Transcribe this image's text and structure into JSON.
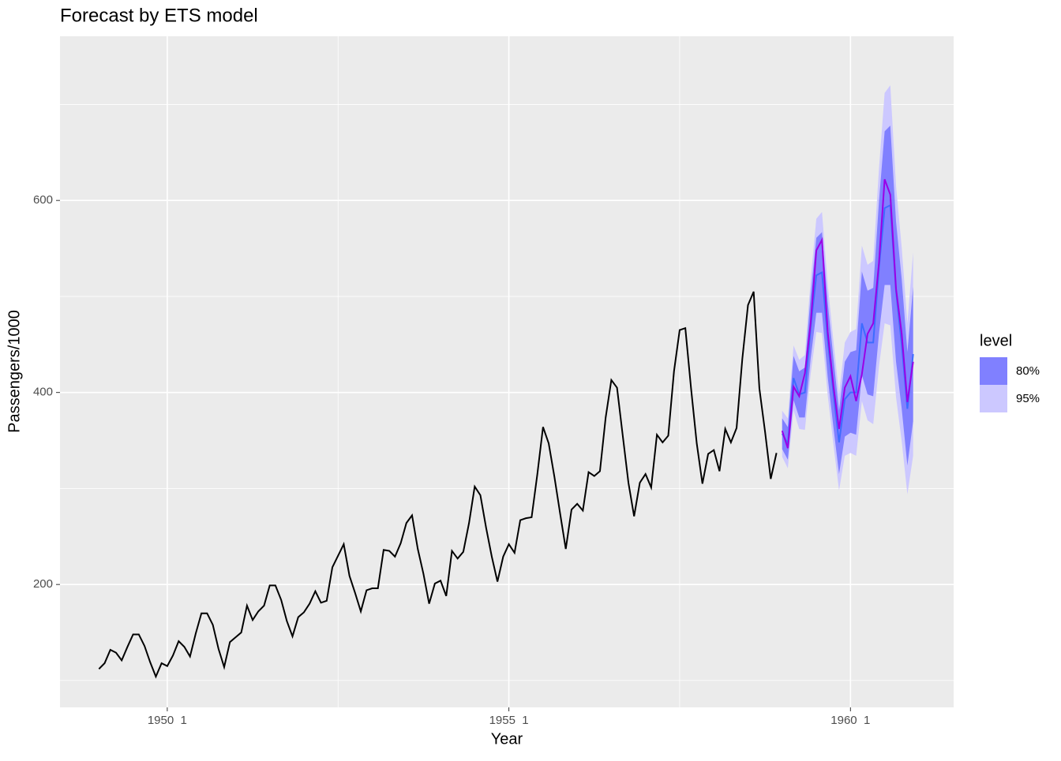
{
  "chart_data": {
    "type": "line",
    "title": "Forecast by ETS model",
    "x_label": "Year",
    "y_label": "Passengers/1000",
    "xlim": [
      1948.43,
      1961.51
    ],
    "ylim": [
      72,
      771
    ],
    "xticks": [
      {
        "value": 1950,
        "label": "1950  1"
      },
      {
        "value": 1955,
        "label": "1955  1"
      },
      {
        "value": 1960,
        "label": "1960  1"
      }
    ],
    "xminorticks": [
      1952.5,
      1957.5
    ],
    "yticks": [
      200,
      400,
      600
    ],
    "yminorticks": [
      100,
      300,
      500,
      700
    ],
    "grid": true,
    "legend_title": "level",
    "legend_position": "right",
    "history": {
      "color": "#000000",
      "x": [
        1949,
        1949.083,
        1949.167,
        1949.25,
        1949.333,
        1949.417,
        1949.5,
        1949.583,
        1949.667,
        1949.75,
        1949.833,
        1949.917,
        1950,
        1950.083,
        1950.167,
        1950.25,
        1950.333,
        1950.417,
        1950.5,
        1950.583,
        1950.667,
        1950.75,
        1950.833,
        1950.917,
        1951,
        1951.083,
        1951.167,
        1951.25,
        1951.333,
        1951.417,
        1951.5,
        1951.583,
        1951.667,
        1951.75,
        1951.833,
        1951.917,
        1952,
        1952.083,
        1952.167,
        1952.25,
        1952.333,
        1952.417,
        1952.5,
        1952.583,
        1952.667,
        1952.75,
        1952.833,
        1952.917,
        1953,
        1953.083,
        1953.167,
        1953.25,
        1953.333,
        1953.417,
        1953.5,
        1953.583,
        1953.667,
        1953.75,
        1953.833,
        1953.917,
        1954,
        1954.083,
        1954.167,
        1954.25,
        1954.333,
        1954.417,
        1954.5,
        1954.583,
        1954.667,
        1954.75,
        1954.833,
        1954.917,
        1955,
        1955.083,
        1955.167,
        1955.25,
        1955.333,
        1955.417,
        1955.5,
        1955.583,
        1955.667,
        1955.75,
        1955.833,
        1955.917,
        1956,
        1956.083,
        1956.167,
        1956.25,
        1956.333,
        1956.417,
        1956.5,
        1956.583,
        1956.667,
        1956.75,
        1956.833,
        1956.917,
        1957,
        1957.083,
        1957.167,
        1957.25,
        1957.333,
        1957.417,
        1957.5,
        1957.583,
        1957.667,
        1957.75,
        1957.833,
        1957.917,
        1958,
        1958.083,
        1958.167,
        1958.25,
        1958.333,
        1958.417,
        1958.5,
        1958.583,
        1958.667,
        1958.75,
        1958.833,
        1958.917
      ],
      "values": [
        112,
        118,
        132,
        129,
        121,
        135,
        148,
        148,
        136,
        119,
        104,
        118,
        115,
        126,
        141,
        135,
        125,
        149,
        170,
        170,
        158,
        133,
        114,
        140,
        145,
        150,
        178,
        163,
        172,
        178,
        199,
        199,
        184,
        162,
        146,
        166,
        171,
        180,
        193,
        181,
        183,
        218,
        230,
        242,
        209,
        191,
        172,
        194,
        196,
        196,
        236,
        235,
        229,
        243,
        264,
        272,
        237,
        211,
        180,
        201,
        204,
        188,
        235,
        227,
        234,
        264,
        302,
        293,
        259,
        229,
        203,
        229,
        242,
        233,
        267,
        269,
        270,
        315,
        364,
        347,
        312,
        274,
        237,
        278,
        284,
        277,
        317,
        313,
        318,
        374,
        413,
        405,
        355,
        306,
        271,
        306,
        315,
        301,
        356,
        348,
        355,
        422,
        465,
        467,
        404,
        347,
        305,
        336,
        340,
        318,
        362,
        348,
        363,
        435,
        491,
        505,
        404,
        359,
        310,
        337
      ]
    },
    "forecast_x": [
      1959,
      1959.083,
      1959.167,
      1959.25,
      1959.333,
      1959.417,
      1959.5,
      1959.583,
      1959.667,
      1959.75,
      1959.833,
      1959.917,
      1960,
      1960.083,
      1960.167,
      1960.25,
      1960.333,
      1960.417,
      1960.5,
      1960.583,
      1960.667,
      1960.75,
      1960.833,
      1960.917
    ],
    "forecast": {
      "color": "#3d6cff",
      "values": [
        357,
        347,
        415,
        398,
        400,
        468,
        522,
        525,
        455,
        400,
        348,
        393,
        400,
        400,
        472,
        452,
        452,
        530,
        592,
        595,
        505,
        450,
        383,
        440
      ]
    },
    "actual": {
      "color": "#9b00e6",
      "values": [
        360,
        342,
        406,
        396,
        420,
        472,
        548,
        559,
        463,
        407,
        362,
        405,
        417,
        391,
        419,
        461,
        472,
        535,
        622,
        606,
        508,
        461,
        390,
        432
      ]
    },
    "bands": [
      {
        "name": "80%",
        "color": "#8080ff",
        "lower": [
          341,
          330,
          392,
          374,
          374,
          435,
          483,
          483,
          416,
          364,
          315,
          354,
          358,
          356,
          418,
          398,
          396,
          461,
          512,
          512,
          432,
          383,
          324,
          370
        ],
        "upper": [
          373,
          364,
          438,
          422,
          426,
          501,
          561,
          567,
          494,
          436,
          381,
          432,
          442,
          444,
          526,
          506,
          509,
          599,
          672,
          678,
          578,
          518,
          442,
          510
        ]
      },
      {
        "name": "95%",
        "color": "#ccc8ff",
        "lower": [
          333,
          321,
          381,
          362,
          361,
          419,
          463,
          462,
          397,
          346,
          298,
          334,
          337,
          334,
          391,
          371,
          367,
          427,
          472,
          470,
          395,
          349,
          294,
          334
        ],
        "upper": [
          381,
          373,
          449,
          434,
          439,
          517,
          581,
          588,
          513,
          454,
          398,
          452,
          463,
          466,
          553,
          533,
          537,
          633,
          712,
          720,
          615,
          551,
          472,
          546
        ]
      }
    ]
  }
}
